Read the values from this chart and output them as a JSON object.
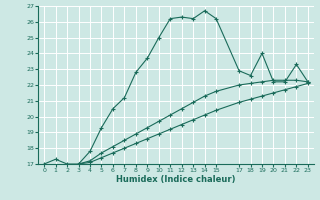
{
  "xlabel": "Humidex (Indice chaleur)",
  "bg_color": "#cde8e4",
  "grid_color": "#b8d8d4",
  "line_color": "#1a6b5a",
  "ylim": [
    17,
    27
  ],
  "xlim": [
    -0.5,
    23.5
  ],
  "yticks": [
    17,
    18,
    19,
    20,
    21,
    22,
    23,
    24,
    25,
    26,
    27
  ],
  "xtick_vals": [
    0,
    1,
    2,
    3,
    4,
    5,
    6,
    7,
    8,
    9,
    10,
    11,
    12,
    13,
    14,
    15,
    17,
    18,
    19,
    20,
    21,
    22,
    23
  ],
  "xtick_labels": [
    "0",
    "1",
    "2",
    "3",
    "4",
    "5",
    "6",
    "7",
    "8",
    "9",
    "10",
    "11",
    "12",
    "13",
    "14",
    "15",
    "17",
    "18",
    "19",
    "20",
    "21",
    "22",
    "23"
  ],
  "curve1_x": [
    0,
    1,
    2,
    3,
    4,
    5,
    6,
    7,
    8,
    9,
    10,
    11,
    12,
    13,
    14,
    15,
    17,
    18,
    19,
    20,
    21,
    22,
    23
  ],
  "curve1_y": [
    17.0,
    17.3,
    17.0,
    17.0,
    17.8,
    19.3,
    20.5,
    21.2,
    22.8,
    23.7,
    25.0,
    26.2,
    26.3,
    26.2,
    26.7,
    26.2,
    22.9,
    22.6,
    24.0,
    22.2,
    22.2,
    23.3,
    22.2
  ],
  "curve2_x": [
    3,
    4,
    5,
    6,
    7,
    8,
    9,
    10,
    11,
    12,
    13,
    14,
    15,
    17,
    18,
    19,
    20,
    21,
    22,
    23
  ],
  "curve2_y": [
    17.0,
    17.2,
    17.7,
    18.1,
    18.5,
    18.9,
    19.3,
    19.7,
    20.1,
    20.5,
    20.9,
    21.3,
    21.6,
    22.0,
    22.1,
    22.2,
    22.3,
    22.3,
    22.3,
    22.2
  ],
  "curve3_x": [
    3,
    4,
    5,
    6,
    7,
    8,
    9,
    10,
    11,
    12,
    13,
    14,
    15,
    17,
    18,
    19,
    20,
    21,
    22,
    23
  ],
  "curve3_y": [
    17.0,
    17.1,
    17.4,
    17.7,
    18.0,
    18.3,
    18.6,
    18.9,
    19.2,
    19.5,
    19.8,
    20.1,
    20.4,
    20.9,
    21.1,
    21.3,
    21.5,
    21.7,
    21.9,
    22.1
  ]
}
